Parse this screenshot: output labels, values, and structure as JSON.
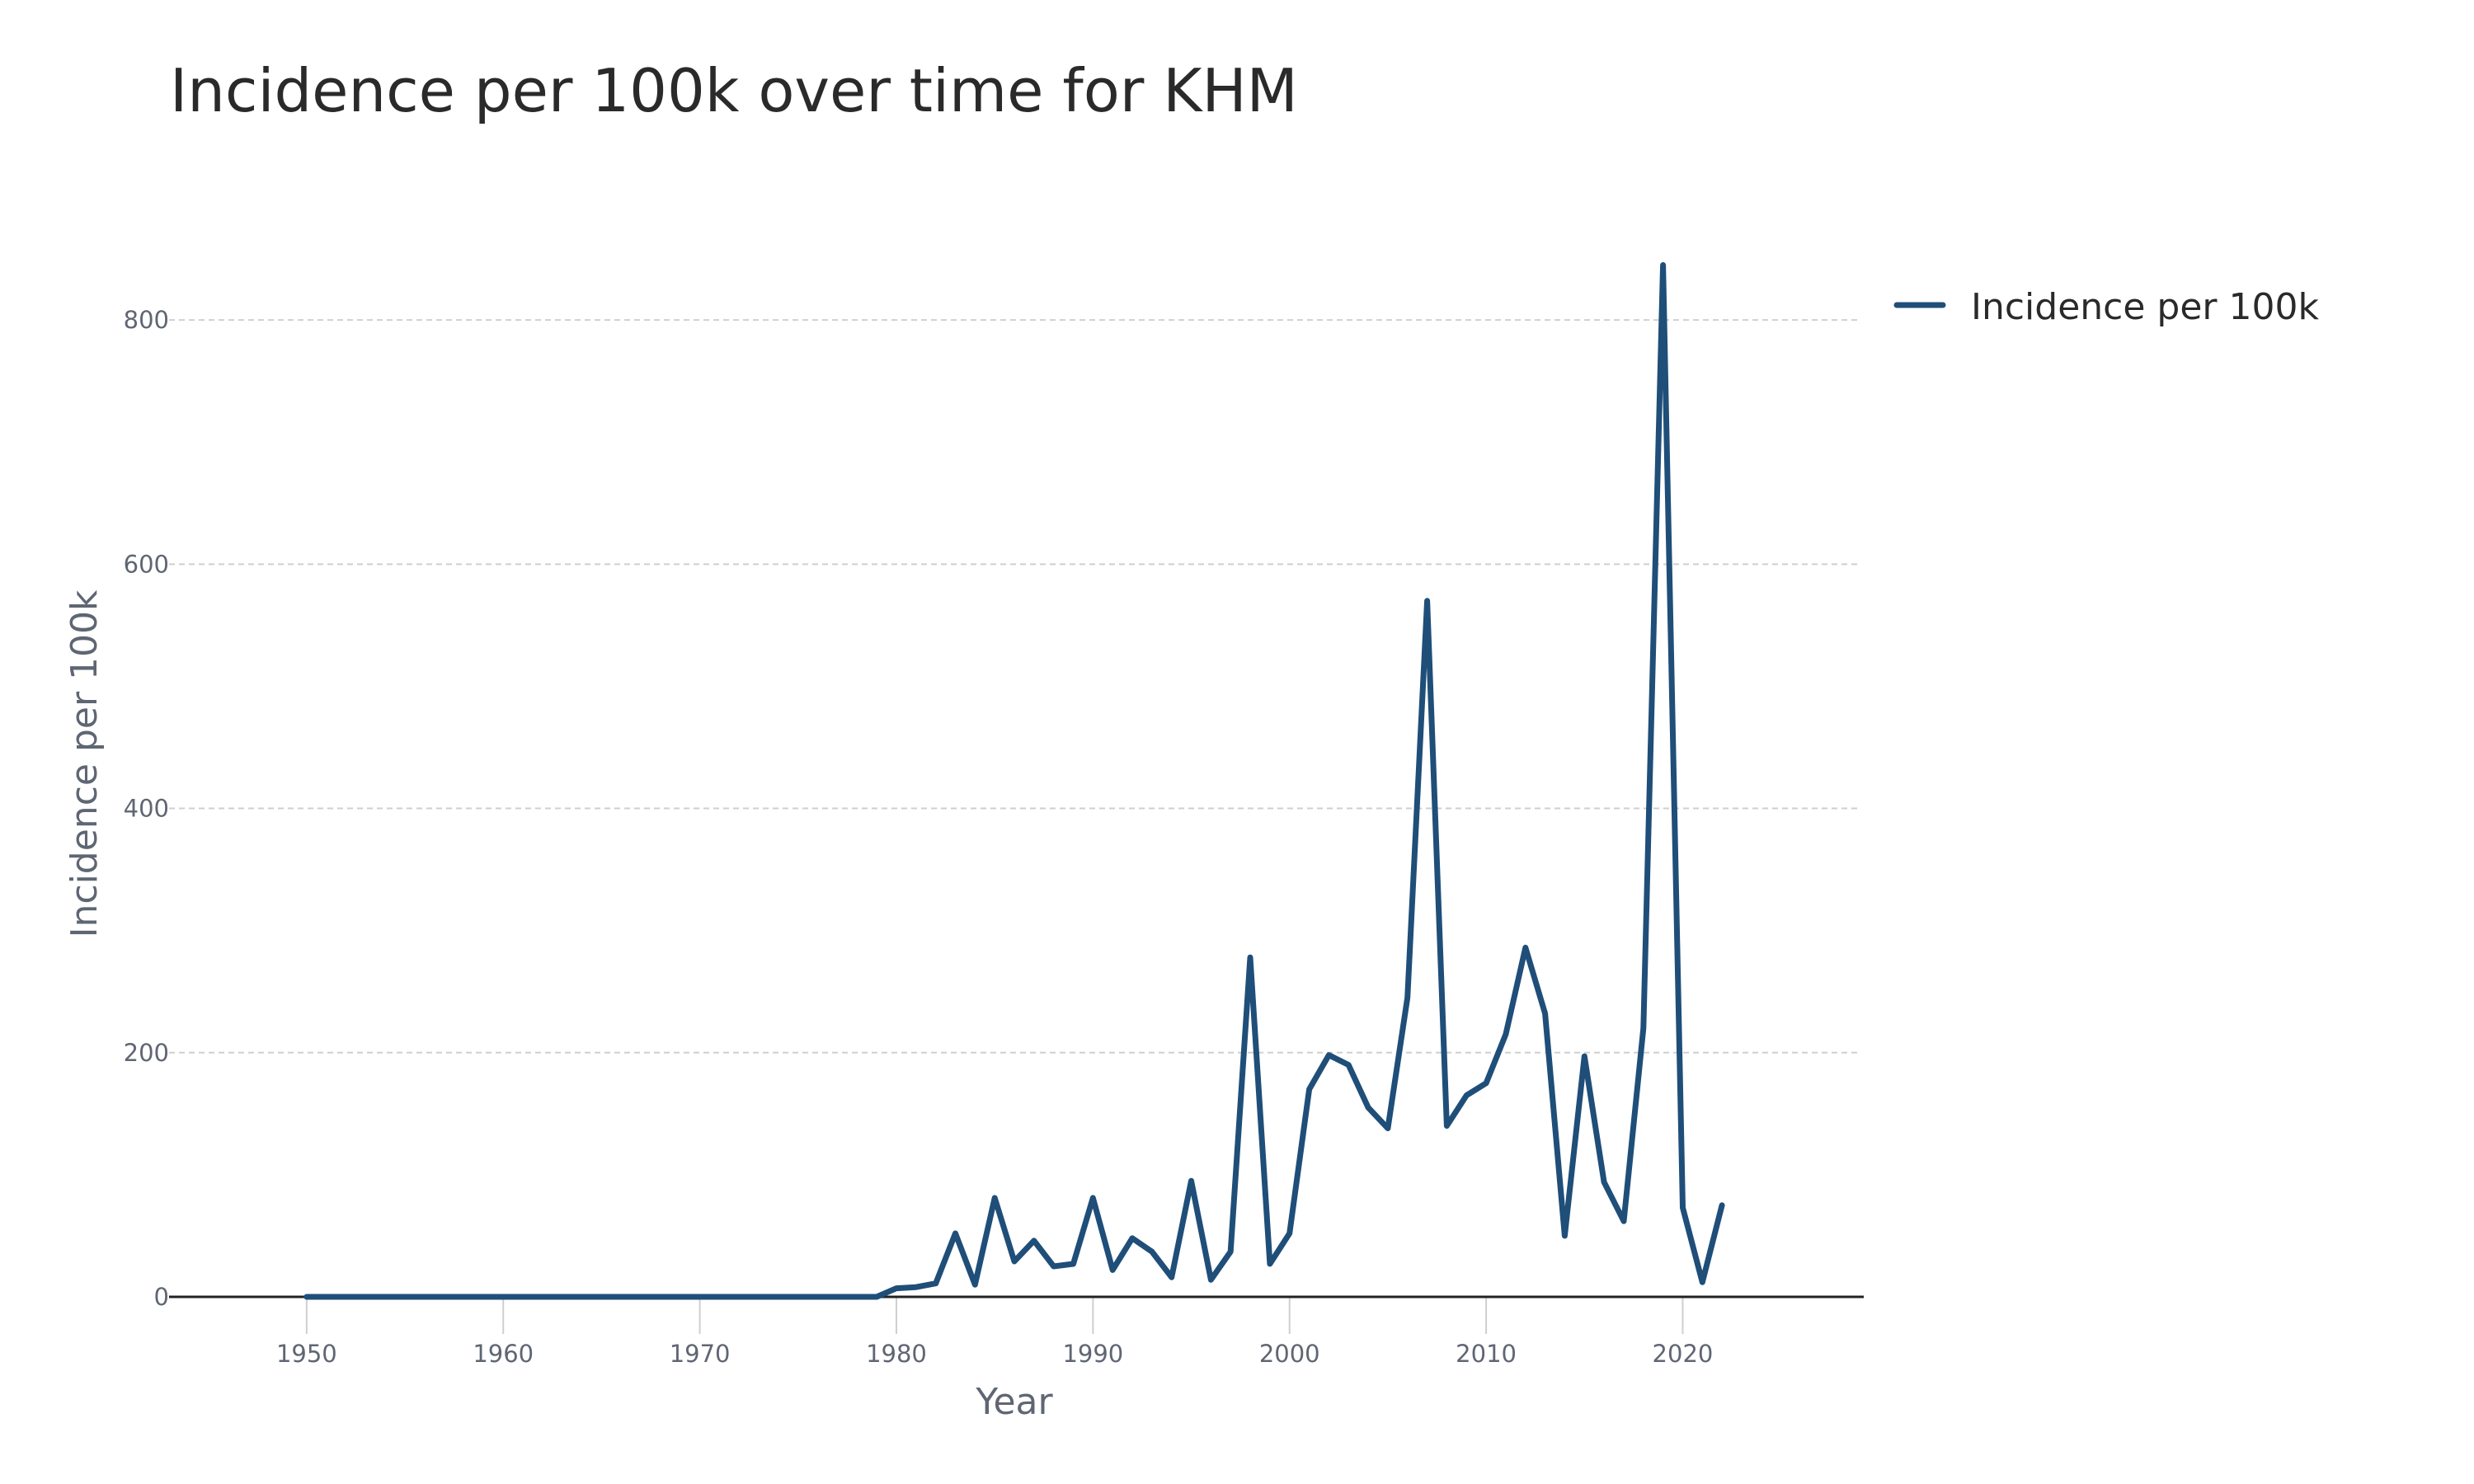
{
  "chart_data": {
    "type": "line",
    "title": "Incidence per 100k over time for KHM",
    "xlabel": "Year",
    "ylabel": "Incidence per 100k",
    "xlim": [
      1943,
      2029
    ],
    "ylim": [
      0,
      900
    ],
    "x_ticks": [
      1950,
      1960,
      1970,
      1980,
      1990,
      2000,
      2010,
      2020
    ],
    "y_ticks": [
      0,
      200,
      400,
      600,
      800
    ],
    "x_tick_labels": [
      "1950",
      "1960",
      "1970",
      "1980",
      "1990",
      "2000",
      "2010",
      "2020"
    ],
    "y_tick_labels": [
      "0",
      "200",
      "400",
      "600",
      "800"
    ],
    "grid": "horizontal dashed",
    "legend_position": "top-right, outside plot",
    "series": [
      {
        "name": "Incidence per 100k",
        "color": "#1f4e79",
        "x": [
          1950,
          1951,
          1952,
          1953,
          1954,
          1955,
          1956,
          1957,
          1958,
          1959,
          1960,
          1961,
          1962,
          1963,
          1964,
          1965,
          1966,
          1967,
          1968,
          1969,
          1970,
          1971,
          1972,
          1973,
          1974,
          1975,
          1976,
          1977,
          1978,
          1979,
          1980,
          1981,
          1982,
          1983,
          1984,
          1985,
          1986,
          1987,
          1988,
          1989,
          1990,
          1991,
          1992,
          1993,
          1994,
          1995,
          1996,
          1997,
          1998,
          1999,
          2000,
          2001,
          2002,
          2003,
          2004,
          2005,
          2006,
          2007,
          2008,
          2009,
          2010,
          2011,
          2012,
          2013,
          2014,
          2015,
          2016,
          2017,
          2018,
          2019,
          2020,
          2021,
          2022
        ],
        "y": [
          0,
          0,
          0,
          0,
          0,
          0,
          0,
          0,
          0,
          0,
          0,
          0,
          0,
          0,
          0,
          0,
          0,
          0,
          0,
          0,
          0,
          0,
          0,
          0,
          0,
          0,
          0,
          0,
          0,
          0,
          7,
          8,
          11,
          52,
          10,
          81,
          29,
          46,
          25,
          27,
          81,
          22,
          48,
          37,
          16,
          95,
          14,
          37,
          278,
          27,
          52,
          170,
          198,
          190,
          155,
          138,
          245,
          570,
          140,
          165,
          175,
          215,
          286,
          232,
          50,
          197,
          94,
          62,
          220,
          845,
          73,
          12,
          75
        ]
      }
    ]
  }
}
